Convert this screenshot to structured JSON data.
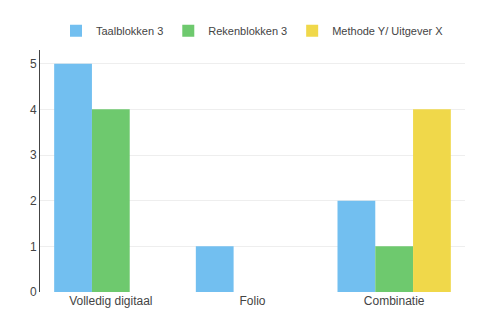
{
  "chart_data": {
    "type": "bar",
    "categories": [
      "Volledig digitaal",
      "Folio",
      "Combinatie"
    ],
    "series": [
      {
        "name": "Taalblokken 3",
        "color": "#72bff0",
        "values": [
          5,
          1,
          2
        ]
      },
      {
        "name": "Rekenblokken 3",
        "color": "#6ec96e",
        "values": [
          4,
          0,
          1
        ]
      },
      {
        "name": "Methode Y/ Uitgever X",
        "color": "#f0d84a",
        "values": [
          0,
          0,
          4
        ]
      }
    ],
    "ylim": [
      0,
      5.3
    ],
    "yticks": [
      0,
      1,
      2,
      3,
      4,
      5
    ],
    "grid": true,
    "legend": "top"
  }
}
